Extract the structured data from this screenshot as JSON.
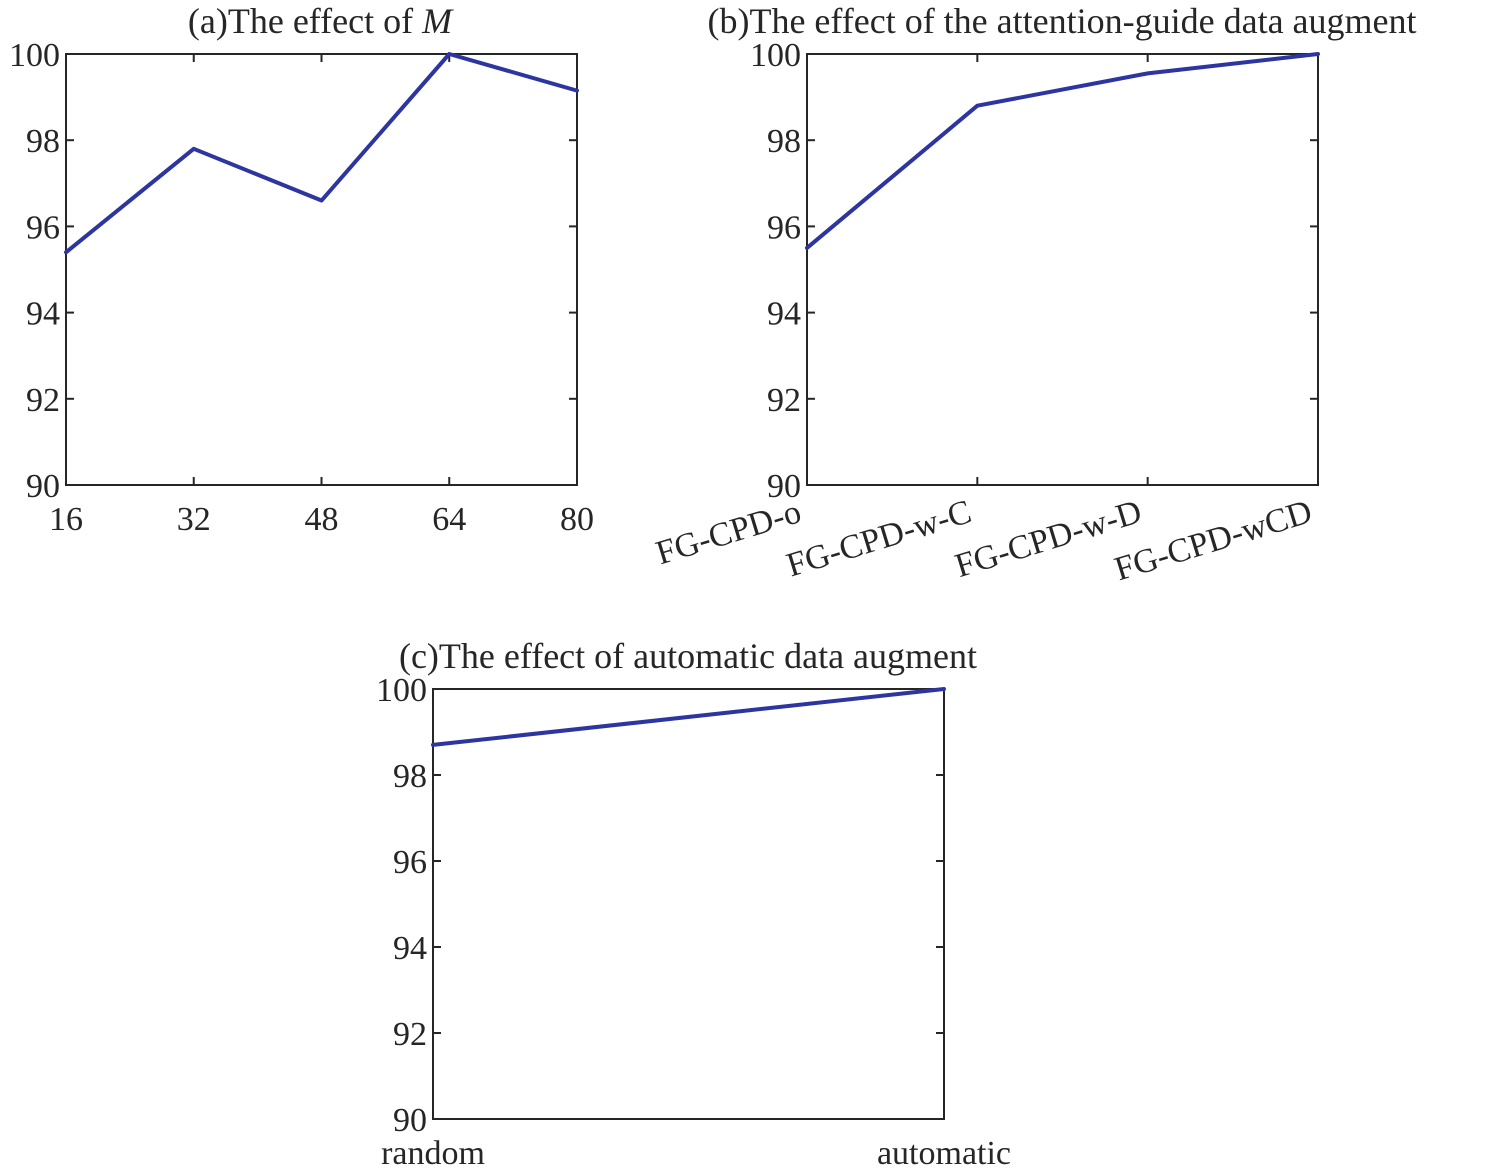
{
  "colors": {
    "series": "#2c35a0",
    "axis": "#262626"
  },
  "chart_data": [
    {
      "type": "line",
      "title_prefix": "(a)The effect of ",
      "title_italic": "M",
      "x": [
        "16",
        "32",
        "48",
        "64",
        "80"
      ],
      "series": [
        {
          "values": [
            95.4,
            97.8,
            96.6,
            100,
            99.15
          ]
        }
      ],
      "yticks": [
        "90",
        "92",
        "94",
        "96",
        "98",
        "100"
      ],
      "ylim": [
        90,
        100
      ],
      "xlabel": "",
      "ylabel": "",
      "grid": false
    },
    {
      "type": "line",
      "title_prefix": "(b)The effect of the attention-guide data augment",
      "title_italic": "",
      "x": [
        "FG-CPD-o",
        "FG-CPD-w-C",
        "FG-CPD-w-D",
        "FG-CPD-wCD"
      ],
      "series": [
        {
          "values": [
            95.5,
            98.8,
            99.55,
            100
          ]
        }
      ],
      "yticks": [
        "90",
        "92",
        "94",
        "96",
        "98",
        "100"
      ],
      "ylim": [
        90,
        100
      ],
      "xlabel": "",
      "ylabel": "",
      "grid": false
    },
    {
      "type": "line",
      "title_prefix": "(c)The effect of automatic data augment",
      "title_italic": "",
      "x": [
        "random",
        "automatic"
      ],
      "series": [
        {
          "values": [
            98.7,
            100
          ]
        }
      ],
      "yticks": [
        "90",
        "92",
        "94",
        "96",
        "98",
        "100"
      ],
      "ylim": [
        90,
        100
      ],
      "xlabel": "",
      "ylabel": "",
      "grid": false
    }
  ]
}
